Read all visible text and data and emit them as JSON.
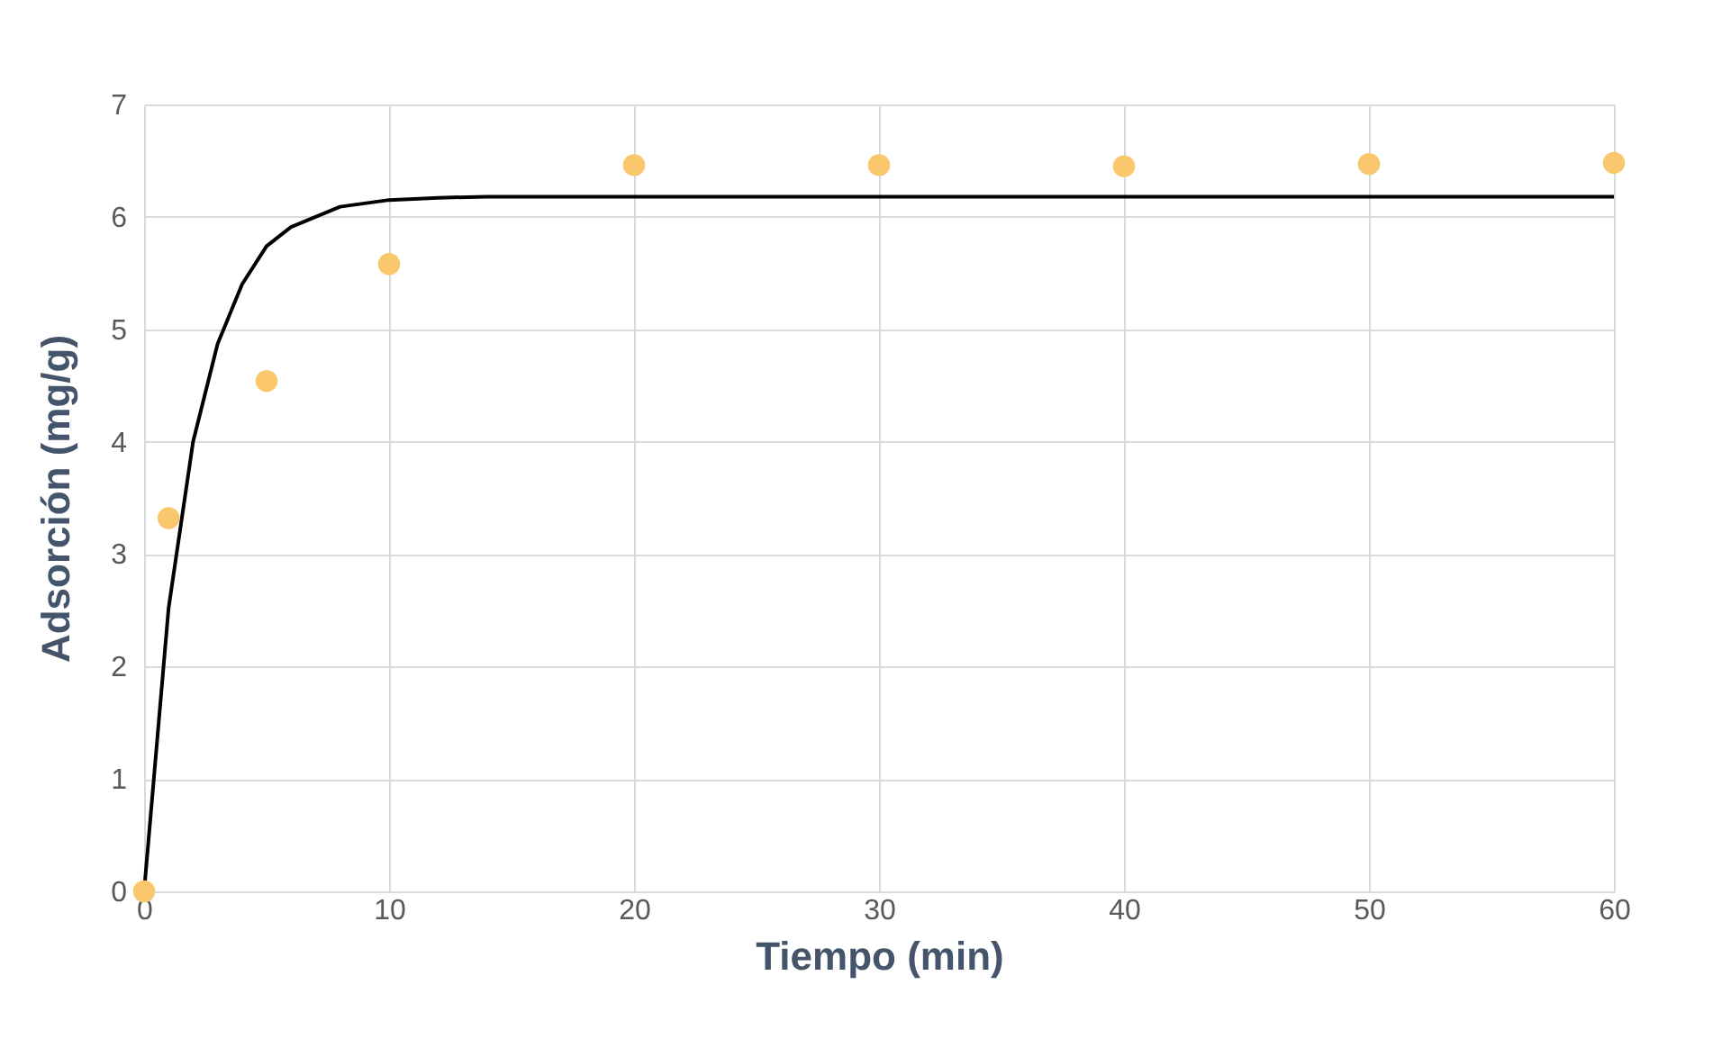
{
  "chart_data": {
    "type": "scatter",
    "xlabel": "Tiempo (min)",
    "ylabel": "Adsorción (mg/g)",
    "xlim": [
      0,
      60
    ],
    "xticks": [
      0,
      10,
      20,
      30,
      40,
      50,
      60
    ],
    "ylim": [
      0,
      7
    ],
    "yticks": [
      0,
      1,
      2,
      3,
      4,
      5,
      6,
      7
    ],
    "grid": true,
    "marker": "circle",
    "series": [
      {
        "type": "scatter",
        "color": "#fbc76c",
        "x": [
          0,
          1,
          5,
          10,
          20,
          30,
          40,
          50,
          60
        ],
        "values": [
          0,
          3.32,
          4.54,
          5.58,
          6.46,
          6.46,
          6.45,
          6.47,
          6.48
        ]
      },
      {
        "type": "line",
        "color": "#000000",
        "marker": "none",
        "x": [
          0,
          1,
          2,
          3,
          4,
          5,
          6,
          8,
          10,
          12,
          14,
          20,
          30,
          40,
          50,
          60
        ],
        "values": [
          0,
          2.52,
          4.0,
          4.87,
          5.4,
          5.74,
          5.91,
          6.09,
          6.15,
          6.17,
          6.18,
          6.18,
          6.18,
          6.18,
          6.18,
          6.18
        ]
      }
    ]
  }
}
